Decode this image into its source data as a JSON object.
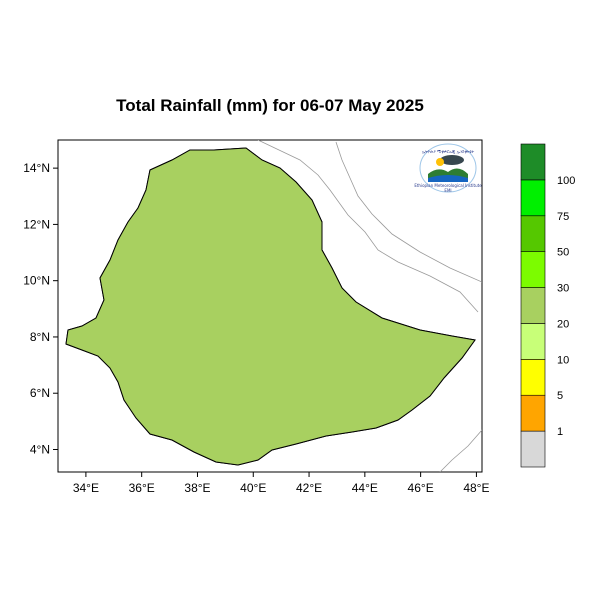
{
  "map": {
    "title": "Total Rainfall (mm) for 06-07 May 2025",
    "x_axis": {
      "ticks": [
        "34°E",
        "36°E",
        "38°E",
        "40°E",
        "42°E",
        "44°E",
        "46°E",
        "48°E"
      ],
      "range_deg": [
        33.0,
        48.2
      ]
    },
    "y_axis": {
      "ticks": [
        "4°N",
        "6°N",
        "8°N",
        "10°N",
        "12°N",
        "14°N"
      ],
      "range_deg": [
        3.2,
        15.0
      ]
    },
    "legend": {
      "placement": "right",
      "classes": [
        {
          "label": "1",
          "color": "#d8d8d8"
        },
        {
          "label": "5",
          "color": "#ffa500"
        },
        {
          "label": "10",
          "color": "#ffff00"
        },
        {
          "label": "20",
          "color": "#c8ff78"
        },
        {
          "label": "30",
          "color": "#a8d060"
        },
        {
          "label": "50",
          "color": "#7cfc00"
        },
        {
          "label": "75",
          "color": "#55c800"
        },
        {
          "label": "100",
          "color": "#00f000"
        },
        {
          "label": "",
          "color": "#1e8c28"
        }
      ]
    },
    "colors": {
      "no_rain": "#d8d8d8",
      "orange": "#ffa500",
      "yellow": "#ffff00",
      "light_green": "#c8ff78",
      "olive_green": "#a8d060",
      "lime": "#7cfc00",
      "green": "#55c800",
      "bright_green": "#00f000",
      "dark_green": "#1e8c28",
      "neighbor_outline": "#9a9a9a"
    },
    "logo": {
      "text_line1": "ኢትዮጵያ ሚቲዎሮሎጂ ኢንስቲትዩት",
      "text_line2": "Ethiopian Meteorological Institute",
      "text_line3": "EMI"
    }
  }
}
